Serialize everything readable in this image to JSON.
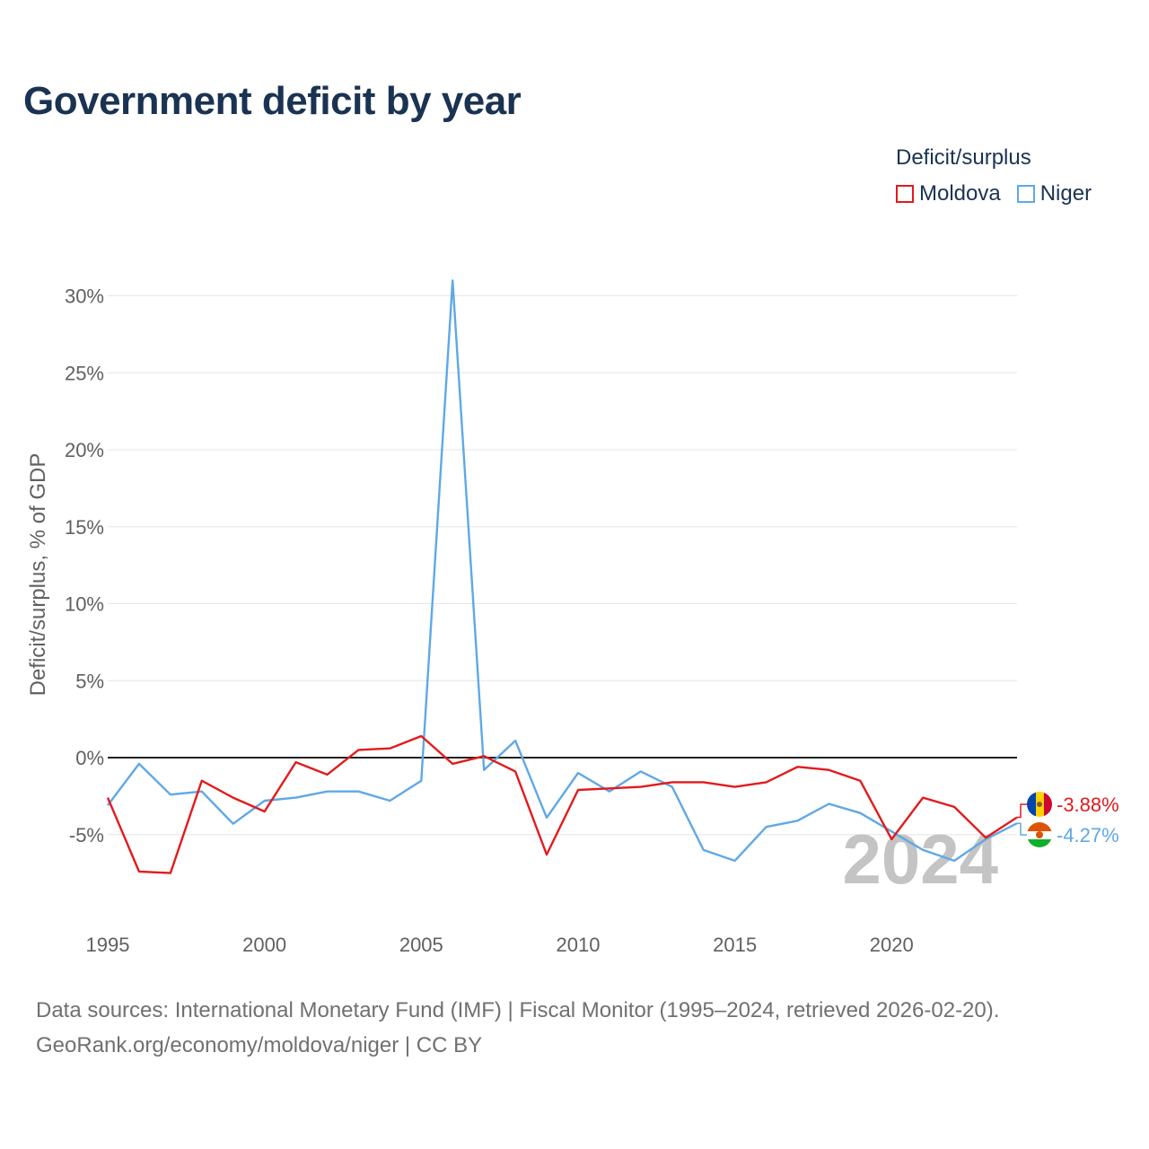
{
  "title": "Government deficit by year",
  "legend": {
    "title": "Deficit/surplus",
    "items": [
      {
        "label": "Moldova",
        "color": "#e31a1c"
      },
      {
        "label": "Niger",
        "color": "#5fa8e6"
      }
    ]
  },
  "watermark_year": "2024",
  "end_labels": {
    "moldova": "-3.88%",
    "niger": "-4.27%"
  },
  "footer": {
    "line1": "Data sources: International Monetary Fund (IMF) | Fiscal Monitor (1995–2024, retrieved 2026-02-20).",
    "line2": "GeoRank.org/economy/moldova/niger | CC BY"
  },
  "chart_data": {
    "type": "line",
    "title": "Government deficit by year",
    "xlabel": "",
    "ylabel": "Deficit/surplus, % of GDP",
    "x": [
      1995,
      1996,
      1997,
      1998,
      1999,
      2000,
      2001,
      2002,
      2003,
      2004,
      2005,
      2006,
      2007,
      2008,
      2009,
      2010,
      2011,
      2012,
      2013,
      2014,
      2015,
      2016,
      2017,
      2018,
      2019,
      2020,
      2021,
      2022,
      2023,
      2024
    ],
    "xticks": [
      1995,
      2000,
      2005,
      2010,
      2015,
      2020
    ],
    "xtick_labels": [
      "1995",
      "2000",
      "2005",
      "2010",
      "2015",
      "2020"
    ],
    "yticks": [
      -5,
      0,
      5,
      10,
      15,
      20,
      25,
      30
    ],
    "ytick_labels": [
      "-5%",
      "0%",
      "5%",
      "10%",
      "15%",
      "20%",
      "25%",
      "30%"
    ],
    "xlim": [
      1995,
      2024
    ],
    "ylim": [
      -9.5,
      32
    ],
    "grid": true,
    "legend_position": "top-right",
    "series": [
      {
        "name": "Moldova",
        "color": "#e31a1c",
        "values": [
          -2.6,
          -7.4,
          -7.5,
          -1.5,
          -2.6,
          -3.5,
          -0.3,
          -1.1,
          0.5,
          0.6,
          1.4,
          -0.4,
          0.1,
          -0.9,
          -6.3,
          -2.1,
          -2.0,
          -1.9,
          -1.6,
          -1.6,
          -1.9,
          -1.6,
          -0.6,
          -0.8,
          -1.5,
          -5.3,
          -2.6,
          -3.2,
          -5.2,
          -3.88
        ]
      },
      {
        "name": "Niger",
        "color": "#5fa8e6",
        "values": [
          -3.1,
          -0.4,
          -2.4,
          -2.2,
          -4.3,
          -2.8,
          -2.6,
          -2.2,
          -2.2,
          -2.8,
          -1.5,
          31.0,
          -0.8,
          1.1,
          -3.9,
          -1.0,
          -2.2,
          -0.9,
          -1.9,
          -6.0,
          -6.7,
          -4.5,
          -4.1,
          -3.0,
          -3.6,
          -4.8,
          -6.0,
          -6.7,
          -5.3,
          -4.27
        ]
      }
    ]
  }
}
